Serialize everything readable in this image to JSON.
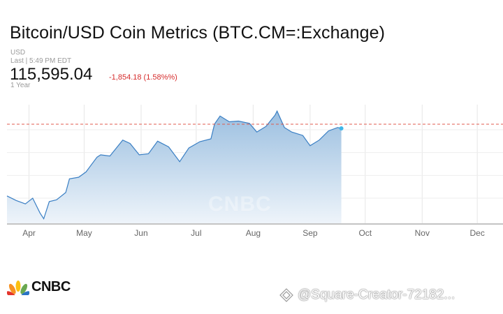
{
  "header": {
    "title": "Bitcoin/USD Coin Metrics (BTC.CM=:Exchange)",
    "currency": "USD",
    "last_trade": "Last | 5:49 PM EDT",
    "price": "115,595.04",
    "change": "-1,854.18 (1.58%%)",
    "range": "1 Year"
  },
  "colors": {
    "line": "#3a7fc4",
    "fill_top": "#9bbfe0",
    "fill_bottom": "#eef4fa",
    "ref_line": "#e05a4e",
    "negative": "#d62d2d"
  },
  "watermark": "CNBC",
  "footer": {
    "logo_text": "CNBC",
    "credit": "@Square-Creator-72182..."
  },
  "chart_data": {
    "type": "area",
    "x_tick_labels": [
      "Apr",
      "May",
      "Jun",
      "Jul",
      "Aug",
      "Sep",
      "Oct",
      "Nov",
      "Dec"
    ],
    "ylim": [
      74000,
      126000
    ],
    "reference_line": 117449,
    "grid": true,
    "series": [
      {
        "x": [
          "2025-03-20",
          "2025-03-25",
          "2025-03-30",
          "2025-04-03",
          "2025-04-07",
          "2025-04-09",
          "2025-04-12",
          "2025-04-16",
          "2025-04-21",
          "2025-04-23",
          "2025-04-28",
          "2025-05-02",
          "2025-05-08",
          "2025-05-10",
          "2025-05-15",
          "2025-05-22",
          "2025-05-26",
          "2025-05-31",
          "2025-06-05",
          "2025-06-10",
          "2025-06-16",
          "2025-06-22",
          "2025-06-27",
          "2025-07-03",
          "2025-07-09",
          "2025-07-11",
          "2025-07-14",
          "2025-07-19",
          "2025-07-24",
          "2025-07-30",
          "2025-08-03",
          "2025-08-08",
          "2025-08-13",
          "2025-08-14",
          "2025-08-18",
          "2025-08-22",
          "2025-08-28",
          "2025-09-01",
          "2025-09-06",
          "2025-09-11",
          "2025-09-16",
          "2025-09-18"
        ],
        "y": [
          86000,
          84000,
          82500,
          85000,
          78500,
          76000,
          83500,
          84300,
          87500,
          93500,
          94200,
          96500,
          103000,
          104000,
          103500,
          110500,
          109000,
          104000,
          104500,
          110000,
          107500,
          101000,
          107000,
          109800,
          111000,
          117500,
          121000,
          118500,
          118800,
          117800,
          114000,
          116500,
          121500,
          123200,
          116000,
          114000,
          112500,
          108000,
          110500,
          114500,
          116000,
          115595
        ]
      }
    ]
  }
}
